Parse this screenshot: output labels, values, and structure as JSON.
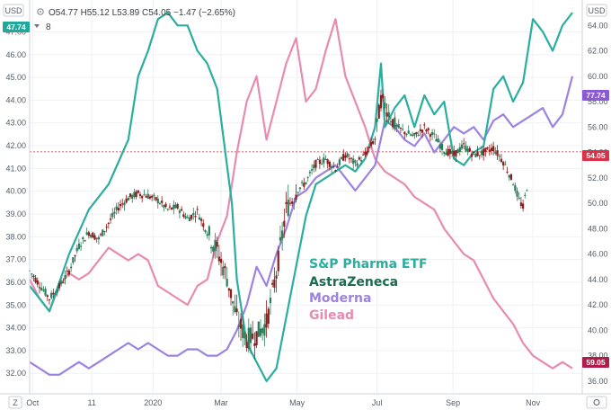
{
  "header": {
    "currency_left": "USD",
    "currency_right": "USD",
    "ohlc": "O54.77  H55.12  L53.89  C54.05  −1.47 (−2.65%)",
    "indicator_count": "8",
    "scale_corner": "Z"
  },
  "axes": {
    "left_ticks": [
      "47.00",
      "46.00",
      "45.00",
      "44.00",
      "43.00",
      "42.00",
      "41.00",
      "40.00",
      "39.00",
      "38.00",
      "37.00",
      "36.00",
      "35.00",
      "34.00",
      "33.00",
      "32.00"
    ],
    "left_tick_values": [
      47,
      46,
      45,
      44,
      43,
      42,
      41,
      40,
      39,
      38,
      37,
      36,
      35,
      34,
      33,
      32
    ],
    "right_ticks": [
      "64.00",
      "62.00",
      "60.00",
      "58.00",
      "56.00",
      "54.00",
      "52.00",
      "50.00",
      "48.00",
      "46.00",
      "44.00",
      "42.00",
      "40.00",
      "38.00",
      "36.00"
    ],
    "right_tick_values": [
      64,
      62,
      60,
      58,
      56,
      54,
      52,
      50,
      48,
      46,
      44,
      42,
      40,
      38,
      36
    ],
    "x_ticks": [
      "Oct",
      "11",
      "2020",
      "Mar",
      "May",
      "Jul",
      "Sep",
      "Nov"
    ],
    "x_tick_positions": [
      0.3,
      6.3,
      12.5,
      19.4,
      27.1,
      35.2,
      42.9,
      51.0
    ]
  },
  "badges": {
    "left_last": "47.74",
    "right_top": "77.74",
    "right_mid": "54.05",
    "right_bottom": "59.05"
  },
  "colors": {
    "pharma_etf": "#2bada0",
    "astrazeneca": "#1a6b50",
    "moderna": "#9d83e0",
    "gilead": "#e78bb0",
    "candle_up": "#2a7d5a",
    "candle_down": "#8b1d1d",
    "badge_teal": "#22a89a",
    "badge_purple": "#8c5ad6",
    "badge_red": "#d9334a",
    "badge_crimson": "#b01c4a",
    "price_line": "#e25b5b"
  },
  "chart_data": {
    "type": "line",
    "title": "",
    "x_unit": "weeks",
    "x_range": [
      0,
      56
    ],
    "y_left_range": [
      31.1,
      48.4
    ],
    "y_right_range": [
      35.0,
      66.0
    ],
    "last_price_line": 54.05,
    "legend": [
      "S&P Pharma ETF",
      "AstraZeneca",
      "Moderna",
      "Gilead"
    ],
    "series": [
      {
        "name": "S&P Pharma ETF",
        "axis": "right",
        "x": [
          0,
          2,
          4,
          6,
          8,
          10,
          11,
          12,
          13,
          14,
          15,
          16,
          17,
          18,
          19,
          20,
          20.5,
          21,
          22,
          23,
          24,
          25,
          26,
          27,
          28,
          29,
          30,
          31,
          32,
          33,
          34,
          35,
          35.6,
          36,
          37,
          38,
          39,
          40,
          41,
          42,
          43,
          44,
          45,
          46,
          47,
          48,
          49,
          50,
          51,
          52,
          53,
          54,
          55
        ],
        "values": [
          43.5,
          41.5,
          46.0,
          49.5,
          51.5,
          55.0,
          60.0,
          62.0,
          64.5,
          65.0,
          64.0,
          64.0,
          62.0,
          61.0,
          59.0,
          53.0,
          50.0,
          44.0,
          39.0,
          37.5,
          36.0,
          37.0,
          41.0,
          45.0,
          49.0,
          51.5,
          52.0,
          52.5,
          53.0,
          52.5,
          53.5,
          56.0,
          61.0,
          56.0,
          57.5,
          58.5,
          56.0,
          58.5,
          57.0,
          58.0,
          53.5,
          53.0,
          54.0,
          54.5,
          59.0,
          60.0,
          58.0,
          59.5,
          64.5,
          63.5,
          62.0,
          64.0,
          65.0
        ]
      },
      {
        "name": "AstraZeneca",
        "axis": "left",
        "x": [
          0,
          1,
          2,
          3,
          4,
          5,
          6,
          7,
          8,
          9,
          10,
          11,
          12,
          13,
          14,
          15,
          16,
          17,
          18,
          19,
          20,
          21,
          22,
          23,
          24,
          25,
          26,
          27,
          28,
          29,
          30,
          31,
          32,
          33,
          34,
          35,
          35.6,
          36,
          37,
          38,
          39,
          40,
          41,
          42,
          43,
          44,
          45,
          46,
          47,
          48,
          49,
          49.6,
          50,
          50.5
        ],
        "values": [
          36.5,
          35.9,
          35.3,
          35.8,
          36.5,
          37.6,
          38.2,
          37.9,
          38.6,
          39.3,
          39.7,
          39.9,
          39.8,
          39.6,
          39.2,
          39.3,
          38.8,
          39.1,
          38.2,
          37.4,
          36.2,
          34.4,
          33.5,
          33.7,
          34.2,
          36.4,
          39.2,
          40.0,
          40.4,
          41.2,
          41.4,
          41.0,
          41.6,
          41.2,
          41.6,
          42.3,
          44.0,
          43.8,
          42.9,
          42.6,
          42.4,
          42.8,
          42.4,
          41.8,
          41.6,
          42.0,
          41.6,
          41.7,
          41.9,
          41.3,
          40.4,
          39.6,
          39.3,
          40.4
        ]
      },
      {
        "name": "Moderna",
        "axis": "right",
        "x": [
          0,
          1,
          2,
          3,
          4,
          5,
          6,
          7,
          8,
          9,
          10,
          11,
          12,
          13,
          14,
          15,
          16,
          17,
          18,
          19,
          20,
          21,
          22,
          23,
          24,
          25,
          26,
          27,
          28,
          29,
          30,
          31,
          32,
          33,
          34,
          35,
          36,
          37,
          38,
          39,
          40,
          41,
          42,
          43,
          44,
          45,
          46,
          47,
          48,
          49,
          50,
          51,
          52,
          53,
          54,
          55
        ],
        "values": [
          37.5,
          37.0,
          36.5,
          36.5,
          37.0,
          37.5,
          37.0,
          37.5,
          38.0,
          38.5,
          39.0,
          38.5,
          39.0,
          38.5,
          38.0,
          38.0,
          38.5,
          38.5,
          38.0,
          38.0,
          38.5,
          40.0,
          42.0,
          45.0,
          43.5,
          46.0,
          48.0,
          50.5,
          51.0,
          52.0,
          52.5,
          53.0,
          52.0,
          51.0,
          52.0,
          53.0,
          56.5,
          56.0,
          55.0,
          54.5,
          55.5,
          54.0,
          55.0,
          56.0,
          55.5,
          56.0,
          55.0,
          56.5,
          57.0,
          56.0,
          56.5,
          57.0,
          57.5,
          56.0,
          57.0,
          60.0
        ]
      },
      {
        "name": "Gilead",
        "axis": "right",
        "x": [
          0,
          1,
          2,
          3,
          4,
          5,
          6,
          7,
          8,
          9,
          10,
          11,
          12,
          13,
          14,
          15,
          16,
          17,
          18,
          19,
          20,
          21,
          22,
          23,
          24,
          25,
          26,
          27,
          28,
          29,
          30,
          31,
          32,
          33,
          34,
          35,
          36,
          37,
          38,
          39,
          40,
          41,
          42,
          43,
          44,
          45,
          46,
          47,
          48,
          49,
          50,
          51,
          52,
          53,
          54,
          55
        ],
        "values": [
          44.0,
          42.5,
          41.5,
          43.5,
          44.5,
          44.0,
          44.5,
          45.5,
          46.5,
          46.0,
          45.5,
          46.0,
          45.5,
          43.5,
          43.0,
          42.5,
          42.0,
          43.5,
          44.0,
          47.0,
          49.0,
          54.0,
          58.0,
          60.0,
          55.0,
          58.0,
          61.0,
          63.0,
          58.0,
          59.0,
          62.0,
          64.5,
          60.0,
          58.0,
          56.0,
          53.5,
          52.5,
          52.0,
          51.5,
          50.5,
          50.0,
          49.5,
          48.0,
          47.0,
          46.0,
          45.5,
          44.0,
          42.5,
          41.5,
          40.5,
          39.0,
          38.0,
          37.5,
          37.0,
          37.5,
          37.0
        ]
      }
    ]
  }
}
